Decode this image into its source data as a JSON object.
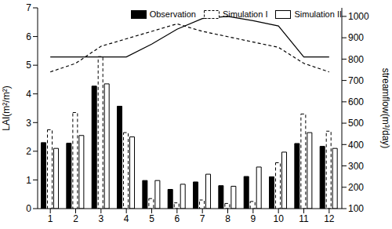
{
  "chart_data": {
    "type": "bar",
    "categories": [
      "1",
      "2",
      "3",
      "4",
      "5",
      "6",
      "7",
      "8",
      "9",
      "10",
      "11",
      "12"
    ],
    "ylabel": "LAI(m²/m²)",
    "y2label": "streamflow(m³/day)",
    "ylim": [
      0,
      7
    ],
    "yticks": [
      0,
      1,
      2,
      3,
      4,
      5,
      6,
      7
    ],
    "y2lim": [
      100,
      1040
    ],
    "y2ticks": [
      100,
      200,
      300,
      400,
      500,
      600,
      700,
      800,
      900,
      1000
    ],
    "legend": "top-right",
    "series": [
      {
        "name": "Observation",
        "type": "bar",
        "color": "#000000",
        "line_style": "solid",
        "values": [
          2.3,
          2.28,
          4.27,
          3.57,
          0.98,
          0.67,
          0.93,
          0.8,
          1.12,
          1.11,
          2.27,
          2.17
        ]
      },
      {
        "name": "Simulation I",
        "type": "bar",
        "color": "#ffffff",
        "line_style": "dashed",
        "values": [
          2.75,
          3.35,
          5.3,
          2.65,
          0.35,
          0.2,
          0.3,
          0.18,
          0.25,
          1.6,
          3.3,
          2.7
        ]
      },
      {
        "name": "Simulation II",
        "type": "bar",
        "color": "#ffffff",
        "line_style": "solid",
        "values": [
          2.1,
          2.55,
          4.35,
          2.5,
          0.98,
          0.85,
          1.2,
          0.78,
          1.45,
          1.97,
          2.65,
          2.1
        ]
      },
      {
        "type": "line",
        "axis": "y2",
        "color": "#000000",
        "line_style": "solid",
        "values": [
          810,
          810,
          810,
          810,
          870,
          940,
          990,
          1000,
          980,
          955,
          810,
          810
        ]
      },
      {
        "type": "line",
        "axis": "y2",
        "color": "#000000",
        "line_style": "dashed",
        "values": [
          740,
          780,
          860,
          895,
          930,
          965,
          930,
          905,
          880,
          855,
          780,
          740
        ]
      }
    ]
  }
}
